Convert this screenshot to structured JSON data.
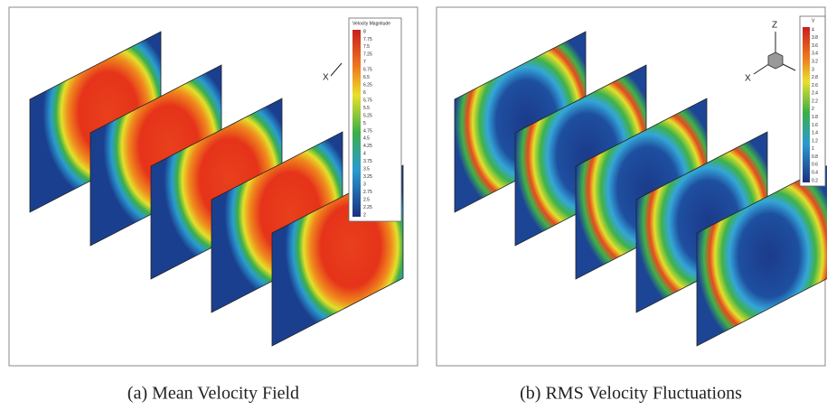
{
  "panels": [
    {
      "caption": "(a) Mean Velocity Field",
      "legend": {
        "title": "Velocity Magnitude",
        "labels": [
          "8",
          "7.75",
          "7.5",
          "7.25",
          "7",
          "6.75",
          "6.5",
          "6.25",
          "6",
          "5.75",
          "5.5",
          "5.25",
          "5",
          "4.75",
          "4.5",
          "4.25",
          "4",
          "3.75",
          "3.5",
          "3.25",
          "3",
          "2.75",
          "2.5",
          "2.25",
          "2"
        ]
      },
      "axes": [
        "X"
      ]
    },
    {
      "caption": "(b) RMS Velocity Fluctuations",
      "legend": {
        "title": "V",
        "labels": [
          "4",
          "3.8",
          "3.6",
          "3.4",
          "3.2",
          "3",
          "2.8",
          "2.6",
          "2.4",
          "2.2",
          "2",
          "1.8",
          "1.6",
          "1.4",
          "1.2",
          "1",
          "0.8",
          "0.6",
          "0.4",
          "0.2"
        ]
      },
      "axes": [
        "Z",
        "X"
      ]
    }
  ]
}
